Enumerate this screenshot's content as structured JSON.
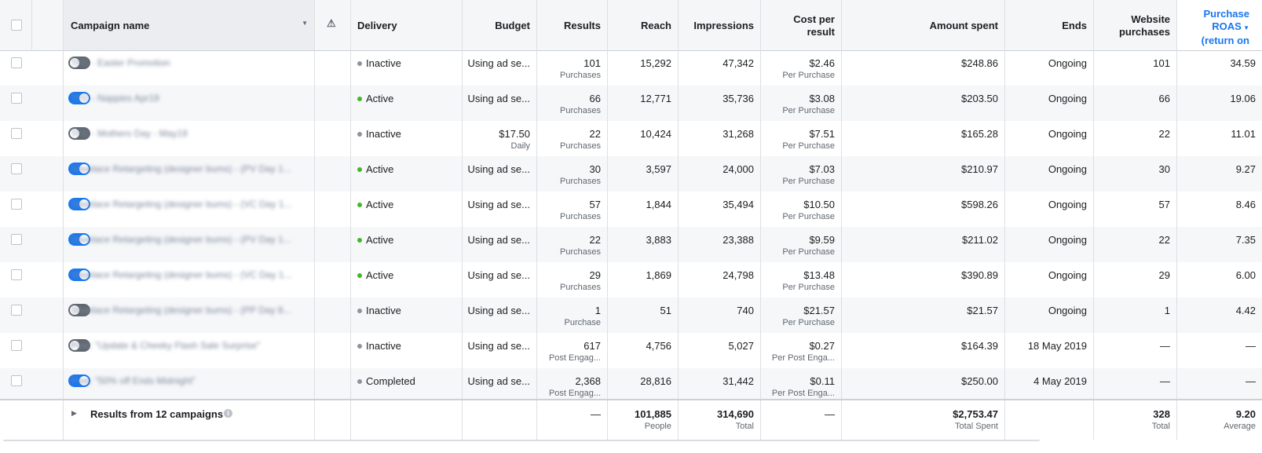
{
  "header": {
    "campaign_name": "Campaign name",
    "warning_icon": "warning-icon",
    "delivery": "Delivery",
    "budget": "Budget",
    "results": "Results",
    "reach": "Reach",
    "impressions": "Impressions",
    "cost_per_result_1": "Cost per",
    "cost_per_result_2": "result",
    "amount_spent": "Amount spent",
    "ends": "Ends",
    "website_purchases_1": "Website",
    "website_purchases_2": "purchases",
    "roas_1": "Purchase",
    "roas_2": "ROAS",
    "roas_3": "(return on",
    "sort_color": "#1877f2"
  },
  "rows": [
    {
      "name": "TFD - Easter Promotion",
      "toggle": "off",
      "delivery": "Inactive",
      "budget": "Using ad se...",
      "budget_sub": "",
      "results": "101",
      "results_sub": "Purchases",
      "reach": "15,292",
      "impressions": "47,342",
      "cpr": "$2.46",
      "cpr_sub": "Per Purchase",
      "spent": "$248.86",
      "ends": "Ongoing",
      "purchases": "101",
      "roas": "34.59"
    },
    {
      "name": "TFD - Nappies Apr19",
      "toggle": "on",
      "delivery": "Active",
      "budget": "Using ad se...",
      "budget_sub": "",
      "results": "66",
      "results_sub": "Purchases",
      "reach": "12,771",
      "impressions": "35,736",
      "cpr": "$3.08",
      "cpr_sub": "Per Purchase",
      "spent": "$203.50",
      "ends": "Ongoing",
      "purchases": "66",
      "roas": "19.06"
    },
    {
      "name": "TFD - Mothers Day - May19",
      "toggle": "off",
      "delivery": "Inactive",
      "budget": "$17.50",
      "budget_sub": "Daily",
      "results": "22",
      "results_sub": "Purchases",
      "reach": "10,424",
      "impressions": "31,268",
      "cpr": "$7.51",
      "cpr_sub": "Per Purchase",
      "spent": "$165.28",
      "ends": "Ongoing",
      "purchases": "22",
      "roas": "11.01"
    },
    {
      "name": "Shoelace Retargeting (designer bums) - (PV Day 1...",
      "toggle": "on",
      "delivery": "Active",
      "budget": "Using ad se...",
      "budget_sub": "",
      "results": "30",
      "results_sub": "Purchases",
      "reach": "3,597",
      "impressions": "24,000",
      "cpr": "$7.03",
      "cpr_sub": "Per Purchase",
      "spent": "$210.97",
      "ends": "Ongoing",
      "purchases": "30",
      "roas": "9.27"
    },
    {
      "name": "Shoelace Retargeting (designer bums) - (VC Day 1...",
      "toggle": "on",
      "delivery": "Active",
      "budget": "Using ad se...",
      "budget_sub": "",
      "results": "57",
      "results_sub": "Purchases",
      "reach": "1,844",
      "impressions": "35,494",
      "cpr": "$10.50",
      "cpr_sub": "Per Purchase",
      "spent": "$598.26",
      "ends": "Ongoing",
      "purchases": "57",
      "roas": "8.46"
    },
    {
      "name": "Shoelace Retargeting (designer bums) - (PV Day 1...",
      "toggle": "on",
      "delivery": "Active",
      "budget": "Using ad se...",
      "budget_sub": "",
      "results": "22",
      "results_sub": "Purchases",
      "reach": "3,883",
      "impressions": "23,388",
      "cpr": "$9.59",
      "cpr_sub": "Per Purchase",
      "spent": "$211.02",
      "ends": "Ongoing",
      "purchases": "22",
      "roas": "7.35"
    },
    {
      "name": "Shoelace Retargeting (designer bums) - (VC Day 1...",
      "toggle": "on",
      "delivery": "Active",
      "budget": "Using ad se...",
      "budget_sub": "",
      "results": "29",
      "results_sub": "Purchases",
      "reach": "1,869",
      "impressions": "24,798",
      "cpr": "$13.48",
      "cpr_sub": "Per Purchase",
      "spent": "$390.89",
      "ends": "Ongoing",
      "purchases": "29",
      "roas": "6.00"
    },
    {
      "name": "Shoelace Retargeting (designer bums) - (PP Day 8...",
      "toggle": "off",
      "delivery": "Inactive",
      "budget": "Using ad se...",
      "budget_sub": "",
      "results": "1",
      "results_sub": "Purchase",
      "reach": "51",
      "impressions": "740",
      "cpr": "$21.57",
      "cpr_sub": "Per Purchase",
      "spent": "$21.57",
      "ends": "Ongoing",
      "purchases": "1",
      "roas": "4.42"
    },
    {
      "name": "Post: \"Update & Cheeky Flash Sale Surprise\"",
      "toggle": "off",
      "delivery": "Inactive",
      "budget": "Using ad se...",
      "budget_sub": "",
      "results": "617",
      "results_sub": "Post Engag...",
      "reach": "4,756",
      "impressions": "5,027",
      "cpr": "$0.27",
      "cpr_sub": "Per Post Enga...",
      "spent": "$164.39",
      "ends": "18 May 2019",
      "purchases": "—",
      "roas": "—"
    },
    {
      "name": "Post: \"50% off Ends Midnight\"",
      "toggle": "on",
      "delivery": "Completed",
      "budget": "Using ad se...",
      "budget_sub": "",
      "results": "2,368",
      "results_sub": "Post Engag...",
      "reach": "28,816",
      "impressions": "31,442",
      "cpr": "$0.11",
      "cpr_sub": "Per Post Enga...",
      "spent": "$250.00",
      "ends": "4 May 2019",
      "purchases": "—",
      "roas": "—"
    }
  ],
  "footer": {
    "label": "Results from 12 campaigns",
    "results": "—",
    "reach": "101,885",
    "reach_sub": "People",
    "impressions": "314,690",
    "impressions_sub": "Total",
    "cpr": "—",
    "spent": "$2,753.47",
    "spent_sub": "Total Spent",
    "purchases": "328",
    "purchases_sub": "Total",
    "roas": "9.20",
    "roas_sub": "Average"
  },
  "colors": {
    "active": "#42b72a",
    "inactive": "#8d949e",
    "completed": "#8d949e",
    "toggle_on": "#1877f2",
    "toggle_off": "#606770"
  }
}
